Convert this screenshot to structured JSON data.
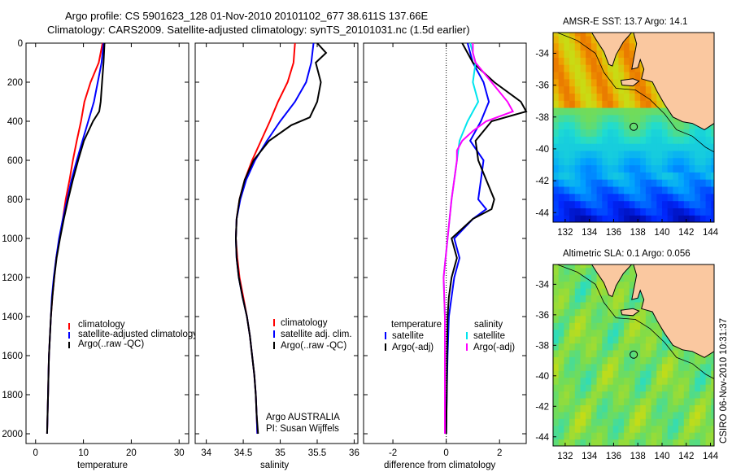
{
  "header": {
    "line1": "Argo profile: CS 5901623_128 01-Nov-2010 20101102_677 38.611S 137.66E",
    "line2": "Climatology: CARS2009. Satellite-adjusted climatology: synTS_20101031.nc (1.5d earlier)"
  },
  "side_label": "CSIRO 06-Nov-2010 10:31:37",
  "chart_data": [
    {
      "type": "line",
      "xlabel": "temperature",
      "ylabel": "",
      "xlim": [
        -2,
        32
      ],
      "ylim": [
        2050,
        0
      ],
      "xticks": [
        "0",
        "10",
        "20",
        "30"
      ],
      "yticks": [
        "0",
        "200",
        "400",
        "600",
        "800",
        "1000",
        "1200",
        "1400",
        "1600",
        "1800",
        "2000"
      ],
      "legend": [
        "climatology",
        "satellite-adjusted climatology",
        "Argo(..raw -QC)"
      ],
      "series": [
        {
          "name": "climatology",
          "color": "#ff0000",
          "depth": [
            0,
            100,
            200,
            300,
            400,
            500,
            600,
            700,
            800,
            900,
            1000,
            1100,
            1200,
            1300,
            1400,
            1500,
            1600,
            1700,
            1800,
            1900,
            2000
          ],
          "values": [
            14.0,
            13.2,
            11.5,
            10.2,
            9.5,
            8.6,
            7.8,
            7.1,
            6.3,
            5.7,
            5.0,
            4.3,
            3.9,
            3.5,
            3.2,
            3.0,
            2.8,
            2.7,
            2.6,
            2.5,
            2.4
          ]
        },
        {
          "name": "satellite-adjusted climatology",
          "color": "#0000ff",
          "depth": [
            0,
            100,
            200,
            300,
            400,
            500,
            600,
            700,
            800,
            900,
            1000,
            1100,
            1200,
            1300,
            1400,
            1500,
            1600,
            1700,
            1800,
            1900,
            2000
          ],
          "values": [
            14.2,
            13.8,
            13.0,
            12.2,
            11.0,
            9.8,
            8.6,
            7.5,
            6.6,
            5.7,
            4.9,
            4.3,
            3.8,
            3.4,
            3.2,
            3.0,
            2.8,
            2.7,
            2.6,
            2.5,
            2.4
          ]
        },
        {
          "name": "Argo(..raw -QC)",
          "color": "#000000",
          "depth": [
            0,
            100,
            200,
            300,
            350,
            400,
            500,
            600,
            700,
            800,
            900,
            1000,
            1100,
            1200,
            1300,
            1400,
            1500,
            1600,
            1700,
            1800,
            1900,
            2000
          ],
          "values": [
            14.4,
            14.2,
            13.9,
            13.6,
            13.3,
            12.0,
            10.1,
            8.9,
            7.8,
            6.8,
            5.9,
            5.1,
            4.4,
            3.9,
            3.5,
            3.2,
            3.0,
            2.8,
            2.7,
            2.6,
            2.5,
            2.4
          ]
        }
      ]
    },
    {
      "type": "line",
      "xlabel": "salinity",
      "xlim": [
        33.85,
        36.05
      ],
      "ylim": [
        2050,
        0
      ],
      "xticks": [
        "34",
        "34.5",
        "35",
        "35.5",
        "36"
      ],
      "legend": [
        "climatology",
        "satellite adj. clim.",
        "Argo(..raw -QC)"
      ],
      "annotation": [
        "Argo AUSTRALIA",
        "PI: Susan Wijffels"
      ],
      "series": [
        {
          "name": "climatology",
          "color": "#ff0000",
          "depth": [
            0,
            100,
            200,
            300,
            400,
            500,
            600,
            700,
            800,
            900,
            1000,
            1100,
            1200,
            1300,
            1400,
            1500,
            1600,
            1700,
            1800,
            1900,
            2000
          ],
          "values": [
            35.2,
            35.18,
            35.1,
            34.97,
            34.86,
            34.74,
            34.62,
            34.52,
            34.45,
            34.41,
            34.4,
            34.42,
            34.45,
            34.5,
            34.55,
            34.59,
            34.62,
            34.65,
            34.67,
            34.68,
            34.69
          ]
        },
        {
          "name": "satellite adj. clim.",
          "color": "#0000ff",
          "depth": [
            0,
            100,
            200,
            300,
            400,
            500,
            600,
            700,
            800,
            900,
            1000,
            1100,
            1200,
            1300,
            1400,
            1500,
            1600,
            1700,
            1800,
            1900,
            2000
          ],
          "values": [
            35.45,
            35.42,
            35.35,
            35.2,
            35.0,
            34.82,
            34.66,
            34.54,
            34.46,
            34.41,
            34.4,
            34.41,
            34.44,
            34.49,
            34.55,
            34.59,
            34.62,
            34.65,
            34.67,
            34.68,
            34.69
          ]
        },
        {
          "name": "Argo(..raw -QC)",
          "color": "#000000",
          "depth": [
            0,
            50,
            100,
            200,
            300,
            380,
            420,
            500,
            600,
            700,
            800,
            900,
            1000,
            1100,
            1200,
            1300,
            1400,
            1500,
            1600,
            1700,
            1800,
            1900,
            2000
          ],
          "values": [
            35.5,
            35.62,
            35.48,
            35.55,
            35.5,
            35.4,
            35.15,
            34.85,
            34.64,
            34.52,
            34.45,
            34.41,
            34.4,
            34.41,
            34.44,
            34.49,
            34.55,
            34.59,
            34.62,
            34.65,
            34.67,
            34.68,
            34.7
          ]
        }
      ]
    },
    {
      "type": "line",
      "xlabel": "difference from climatology",
      "xlim": [
        -3.1,
        3.0
      ],
      "ylim": [
        2050,
        0
      ],
      "xticks": [
        "-2",
        "0",
        "2"
      ],
      "legend_temperature": {
        "title": "temperature",
        "items": [
          "satellite",
          "Argo(-adj)"
        ]
      },
      "legend_salinity": {
        "title": "salinity",
        "items": [
          "satellite",
          "Argo(-adj)"
        ]
      },
      "series": [
        {
          "name": "temperature satellite",
          "color": "#0000ff",
          "depth": [
            0,
            100,
            200,
            300,
            400,
            500,
            600,
            700,
            800,
            850,
            900,
            1000,
            1100,
            1200,
            1300,
            1400,
            1600,
            1800,
            2000
          ],
          "values": [
            0.8,
            1.0,
            1.4,
            1.6,
            1.3,
            0.9,
            1.4,
            1.3,
            1.2,
            1.5,
            1.0,
            0.3,
            0.5,
            0.3,
            0.2,
            0.1,
            0.05,
            0.02,
            0.0
          ]
        },
        {
          "name": "temperature Argo(-adj)",
          "color": "#000000",
          "depth": [
            0,
            100,
            200,
            300,
            350,
            400,
            500,
            600,
            700,
            800,
            850,
            900,
            1000,
            1100,
            1200,
            1300,
            1400,
            1600,
            1800,
            2000
          ],
          "values": [
            0.6,
            1.0,
            1.8,
            2.8,
            3.0,
            1.7,
            1.1,
            1.2,
            1.5,
            1.8,
            1.7,
            1.0,
            0.2,
            0.4,
            0.2,
            0.1,
            0.05,
            0.03,
            0.02,
            0.0
          ]
        },
        {
          "name": "salinity satellite",
          "color": "#00e5ee",
          "depth": [
            0,
            100,
            200,
            300,
            400,
            500,
            600,
            800,
            1000,
            1200,
            1400,
            1600,
            1800,
            2000
          ],
          "values": [
            0.9,
            1.1,
            1.0,
            1.2,
            0.8,
            0.5,
            0.4,
            0.2,
            0.05,
            -0.1,
            -0.05,
            -0.05,
            -0.05,
            -0.05
          ]
        },
        {
          "name": "salinity Argo(-adj)",
          "color": "#ff00ff",
          "depth": [
            0,
            50,
            100,
            200,
            300,
            350,
            400,
            450,
            500,
            550,
            600,
            700,
            800,
            1000,
            1200,
            1400,
            1600,
            1800,
            2000
          ],
          "values": [
            1.0,
            1.0,
            1.1,
            1.7,
            2.3,
            2.5,
            1.5,
            1.0,
            0.6,
            0.4,
            0.4,
            0.3,
            0.2,
            0.05,
            -0.1,
            -0.05,
            -0.05,
            -0.05,
            -0.05
          ]
        }
      ]
    },
    {
      "type": "heatmap",
      "title": "AMSR-E SST: 13.7 Argo: 14.1",
      "xticks": [
        "132",
        "134",
        "136",
        "138",
        "140",
        "142",
        "144"
      ],
      "yticks": [
        "-34",
        "-36",
        "-38",
        "-40",
        "-42",
        "-44"
      ],
      "xlim": [
        131,
        144.3
      ],
      "ylim": [
        -44.6,
        -32.7
      ],
      "marker": {
        "lon": 137.66,
        "lat": -38.611
      }
    },
    {
      "type": "heatmap",
      "title": "Altimetric SLA: 0.1 Argo: 0.056",
      "xticks": [
        "132",
        "134",
        "136",
        "138",
        "140",
        "142",
        "144"
      ],
      "yticks": [
        "-34",
        "-36",
        "-38",
        "-40",
        "-42",
        "-44"
      ],
      "xlim": [
        131,
        144.3
      ],
      "ylim": [
        -44.6,
        -32.7
      ],
      "marker": {
        "lon": 137.66,
        "lat": -38.611
      }
    }
  ]
}
